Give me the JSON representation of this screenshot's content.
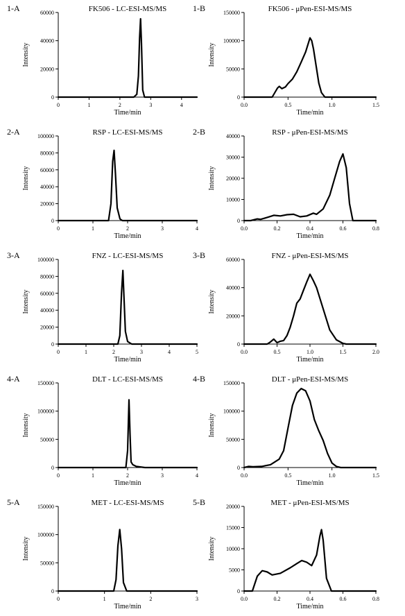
{
  "chart_data": [
    {
      "panel_label": "1-A",
      "title": "FK506 - LC-ESI-MS/MS",
      "type": "line",
      "xlabel": "Time/min",
      "ylabel": "Intensity",
      "xlim": [
        0,
        4.5
      ],
      "ylim": [
        0,
        60000
      ],
      "xticks": [
        0,
        1,
        2,
        3,
        4
      ],
      "yticks": [
        0,
        20000,
        40000,
        60000
      ],
      "x": [
        0,
        2.45,
        2.55,
        2.6,
        2.64,
        2.67,
        2.7,
        2.74,
        2.8,
        4.5
      ],
      "y": [
        0,
        0,
        2000,
        15000,
        42000,
        55500,
        38000,
        5000,
        0,
        0
      ]
    },
    {
      "panel_label": "1-B",
      "title": "FK506 - μPen-ESI-MS/MS",
      "type": "line",
      "xlabel": "Time/min",
      "ylabel": "Intensity",
      "xlim": [
        0,
        1.5
      ],
      "ylim": [
        0,
        150000
      ],
      "xticks": [
        0.0,
        0.5,
        1.0,
        1.5
      ],
      "yticks": [
        0,
        50000,
        100000,
        150000
      ],
      "x": [
        0,
        0.32,
        0.35,
        0.38,
        0.4,
        0.43,
        0.47,
        0.5,
        0.55,
        0.6,
        0.65,
        0.7,
        0.73,
        0.75,
        0.77,
        0.79,
        0.82,
        0.85,
        0.88,
        0.92,
        1.5
      ],
      "y": [
        0,
        0,
        8000,
        16000,
        19000,
        15000,
        18000,
        24000,
        32000,
        45000,
        62000,
        80000,
        95000,
        105000,
        100000,
        85000,
        55000,
        25000,
        8000,
        0,
        0
      ]
    },
    {
      "panel_label": "2-A",
      "title": "RSP - LC-ESI-MS/MS",
      "type": "line",
      "xlabel": "Time/min",
      "ylabel": "Intensity",
      "xlim": [
        0,
        4
      ],
      "ylim": [
        0,
        100000
      ],
      "xticks": [
        0,
        1,
        2,
        3,
        4
      ],
      "yticks": [
        0,
        20000,
        40000,
        60000,
        80000,
        100000
      ],
      "x": [
        0,
        1.45,
        1.52,
        1.57,
        1.61,
        1.65,
        1.7,
        1.78,
        1.85,
        4
      ],
      "y": [
        0,
        0,
        20000,
        70000,
        83000,
        55000,
        15000,
        2000,
        0,
        0
      ]
    },
    {
      "panel_label": "2-B",
      "title": "RSP - μPen-ESI-MS/MS",
      "type": "line",
      "xlabel": "Time/min",
      "ylabel": "Intensity",
      "xlim": [
        0,
        0.8
      ],
      "ylim": [
        0,
        40000
      ],
      "xticks": [
        0.0,
        0.2,
        0.4,
        0.6,
        0.8
      ],
      "yticks": [
        0,
        10000,
        20000,
        30000,
        40000
      ],
      "x": [
        0,
        0.04,
        0.08,
        0.1,
        0.14,
        0.18,
        0.22,
        0.26,
        0.3,
        0.34,
        0.38,
        0.42,
        0.44,
        0.48,
        0.52,
        0.55,
        0.58,
        0.6,
        0.62,
        0.64,
        0.66,
        0.8
      ],
      "y": [
        0,
        0,
        800,
        600,
        1500,
        2500,
        2200,
        2800,
        3000,
        1800,
        2200,
        3500,
        3000,
        5500,
        12000,
        20000,
        28000,
        31500,
        25000,
        8000,
        0,
        0
      ]
    },
    {
      "panel_label": "3-A",
      "title": "FNZ - LC-ESI-MS/MS",
      "type": "line",
      "xlabel": "Time/min",
      "ylabel": "Intensity",
      "xlim": [
        0,
        5
      ],
      "ylim": [
        0,
        100000
      ],
      "xticks": [
        0,
        1,
        2,
        3,
        4,
        5
      ],
      "yticks": [
        0,
        20000,
        40000,
        60000,
        80000,
        100000
      ],
      "x": [
        0,
        2.15,
        2.22,
        2.28,
        2.33,
        2.37,
        2.42,
        2.5,
        2.65,
        5
      ],
      "y": [
        0,
        0,
        10000,
        60000,
        87000,
        55000,
        15000,
        3000,
        0,
        0
      ]
    },
    {
      "panel_label": "3-B",
      "title": "FNZ - μPen-ESI-MS/MS",
      "type": "line",
      "xlabel": "Time/min",
      "ylabel": "Intensity",
      "xlim": [
        0,
        2.0
      ],
      "ylim": [
        0,
        60000
      ],
      "xticks": [
        0.0,
        0.5,
        1.0,
        1.5,
        2.0
      ],
      "yticks": [
        0,
        20000,
        40000,
        60000
      ],
      "x": [
        0,
        0.35,
        0.4,
        0.45,
        0.5,
        0.55,
        0.6,
        0.65,
        0.7,
        0.75,
        0.8,
        0.85,
        0.9,
        0.95,
        1.0,
        1.05,
        1.1,
        1.2,
        1.3,
        1.4,
        1.5,
        1.55,
        2.0
      ],
      "y": [
        0,
        0,
        1500,
        3500,
        1000,
        2000,
        2500,
        6000,
        12000,
        20000,
        29000,
        32000,
        38000,
        44000,
        49500,
        45000,
        40000,
        25000,
        10000,
        3000,
        500,
        0,
        0
      ]
    },
    {
      "panel_label": "4-A",
      "title": "DLT - LC-ESI-MS/MS",
      "type": "line",
      "xlabel": "Time/min",
      "ylabel": "Intensity",
      "xlim": [
        0,
        4
      ],
      "ylim": [
        0,
        150000
      ],
      "xticks": [
        0,
        1,
        2,
        3,
        4
      ],
      "yticks": [
        0,
        50000,
        100000,
        150000
      ],
      "x": [
        0,
        1.95,
        2.0,
        2.04,
        2.07,
        2.1,
        2.15,
        2.25,
        2.5,
        4
      ],
      "y": [
        0,
        0,
        30000,
        120000,
        60000,
        10000,
        5000,
        2000,
        0,
        0
      ]
    },
    {
      "panel_label": "4-B",
      "title": "DLT - μPen-ESI-MS/MS",
      "type": "line",
      "xlabel": "Time/min",
      "ylabel": "Intensity",
      "xlim": [
        0,
        1.5
      ],
      "ylim": [
        0,
        150000
      ],
      "xticks": [
        0.0,
        0.5,
        1.0,
        1.5
      ],
      "yticks": [
        0,
        50000,
        100000,
        150000
      ],
      "x": [
        0,
        0.05,
        0.1,
        0.2,
        0.3,
        0.4,
        0.45,
        0.5,
        0.55,
        0.6,
        0.65,
        0.7,
        0.75,
        0.8,
        0.85,
        0.9,
        0.95,
        1.0,
        1.05,
        1.1,
        1.5
      ],
      "y": [
        0,
        2000,
        1500,
        2000,
        5000,
        15000,
        30000,
        70000,
        110000,
        132000,
        140000,
        136000,
        118000,
        85000,
        65000,
        48000,
        25000,
        8000,
        2000,
        0,
        0
      ]
    },
    {
      "panel_label": "5-A",
      "title": "MET - LC-ESI-MS/MS",
      "type": "line",
      "xlabel": "Time/min",
      "ylabel": "Intensity",
      "xlim": [
        0,
        3
      ],
      "ylim": [
        0,
        150000
      ],
      "xticks": [
        0,
        1,
        2,
        3
      ],
      "yticks": [
        0,
        50000,
        100000,
        150000
      ],
      "x": [
        0,
        1.2,
        1.25,
        1.29,
        1.33,
        1.37,
        1.41,
        1.48,
        3
      ],
      "y": [
        0,
        0,
        20000,
        80000,
        109000,
        75000,
        15000,
        0,
        0
      ]
    },
    {
      "panel_label": "5-B",
      "title": "MET - μPen-ESI-MS/MS",
      "type": "line",
      "xlabel": "Time/min",
      "ylabel": "Intensity",
      "xlim": [
        0,
        0.8
      ],
      "ylim": [
        0,
        20000
      ],
      "xticks": [
        0.0,
        0.2,
        0.4,
        0.6,
        0.8
      ],
      "yticks": [
        0,
        5000,
        10000,
        15000,
        20000
      ],
      "x": [
        0,
        0.05,
        0.08,
        0.11,
        0.14,
        0.17,
        0.22,
        0.28,
        0.32,
        0.35,
        0.38,
        0.41,
        0.44,
        0.46,
        0.47,
        0.48,
        0.5,
        0.53,
        0.8
      ],
      "y": [
        0,
        0,
        3500,
        4800,
        4500,
        3800,
        4200,
        5500,
        6500,
        7200,
        6800,
        6000,
        8500,
        13000,
        14500,
        12000,
        3000,
        0,
        0
      ]
    }
  ]
}
